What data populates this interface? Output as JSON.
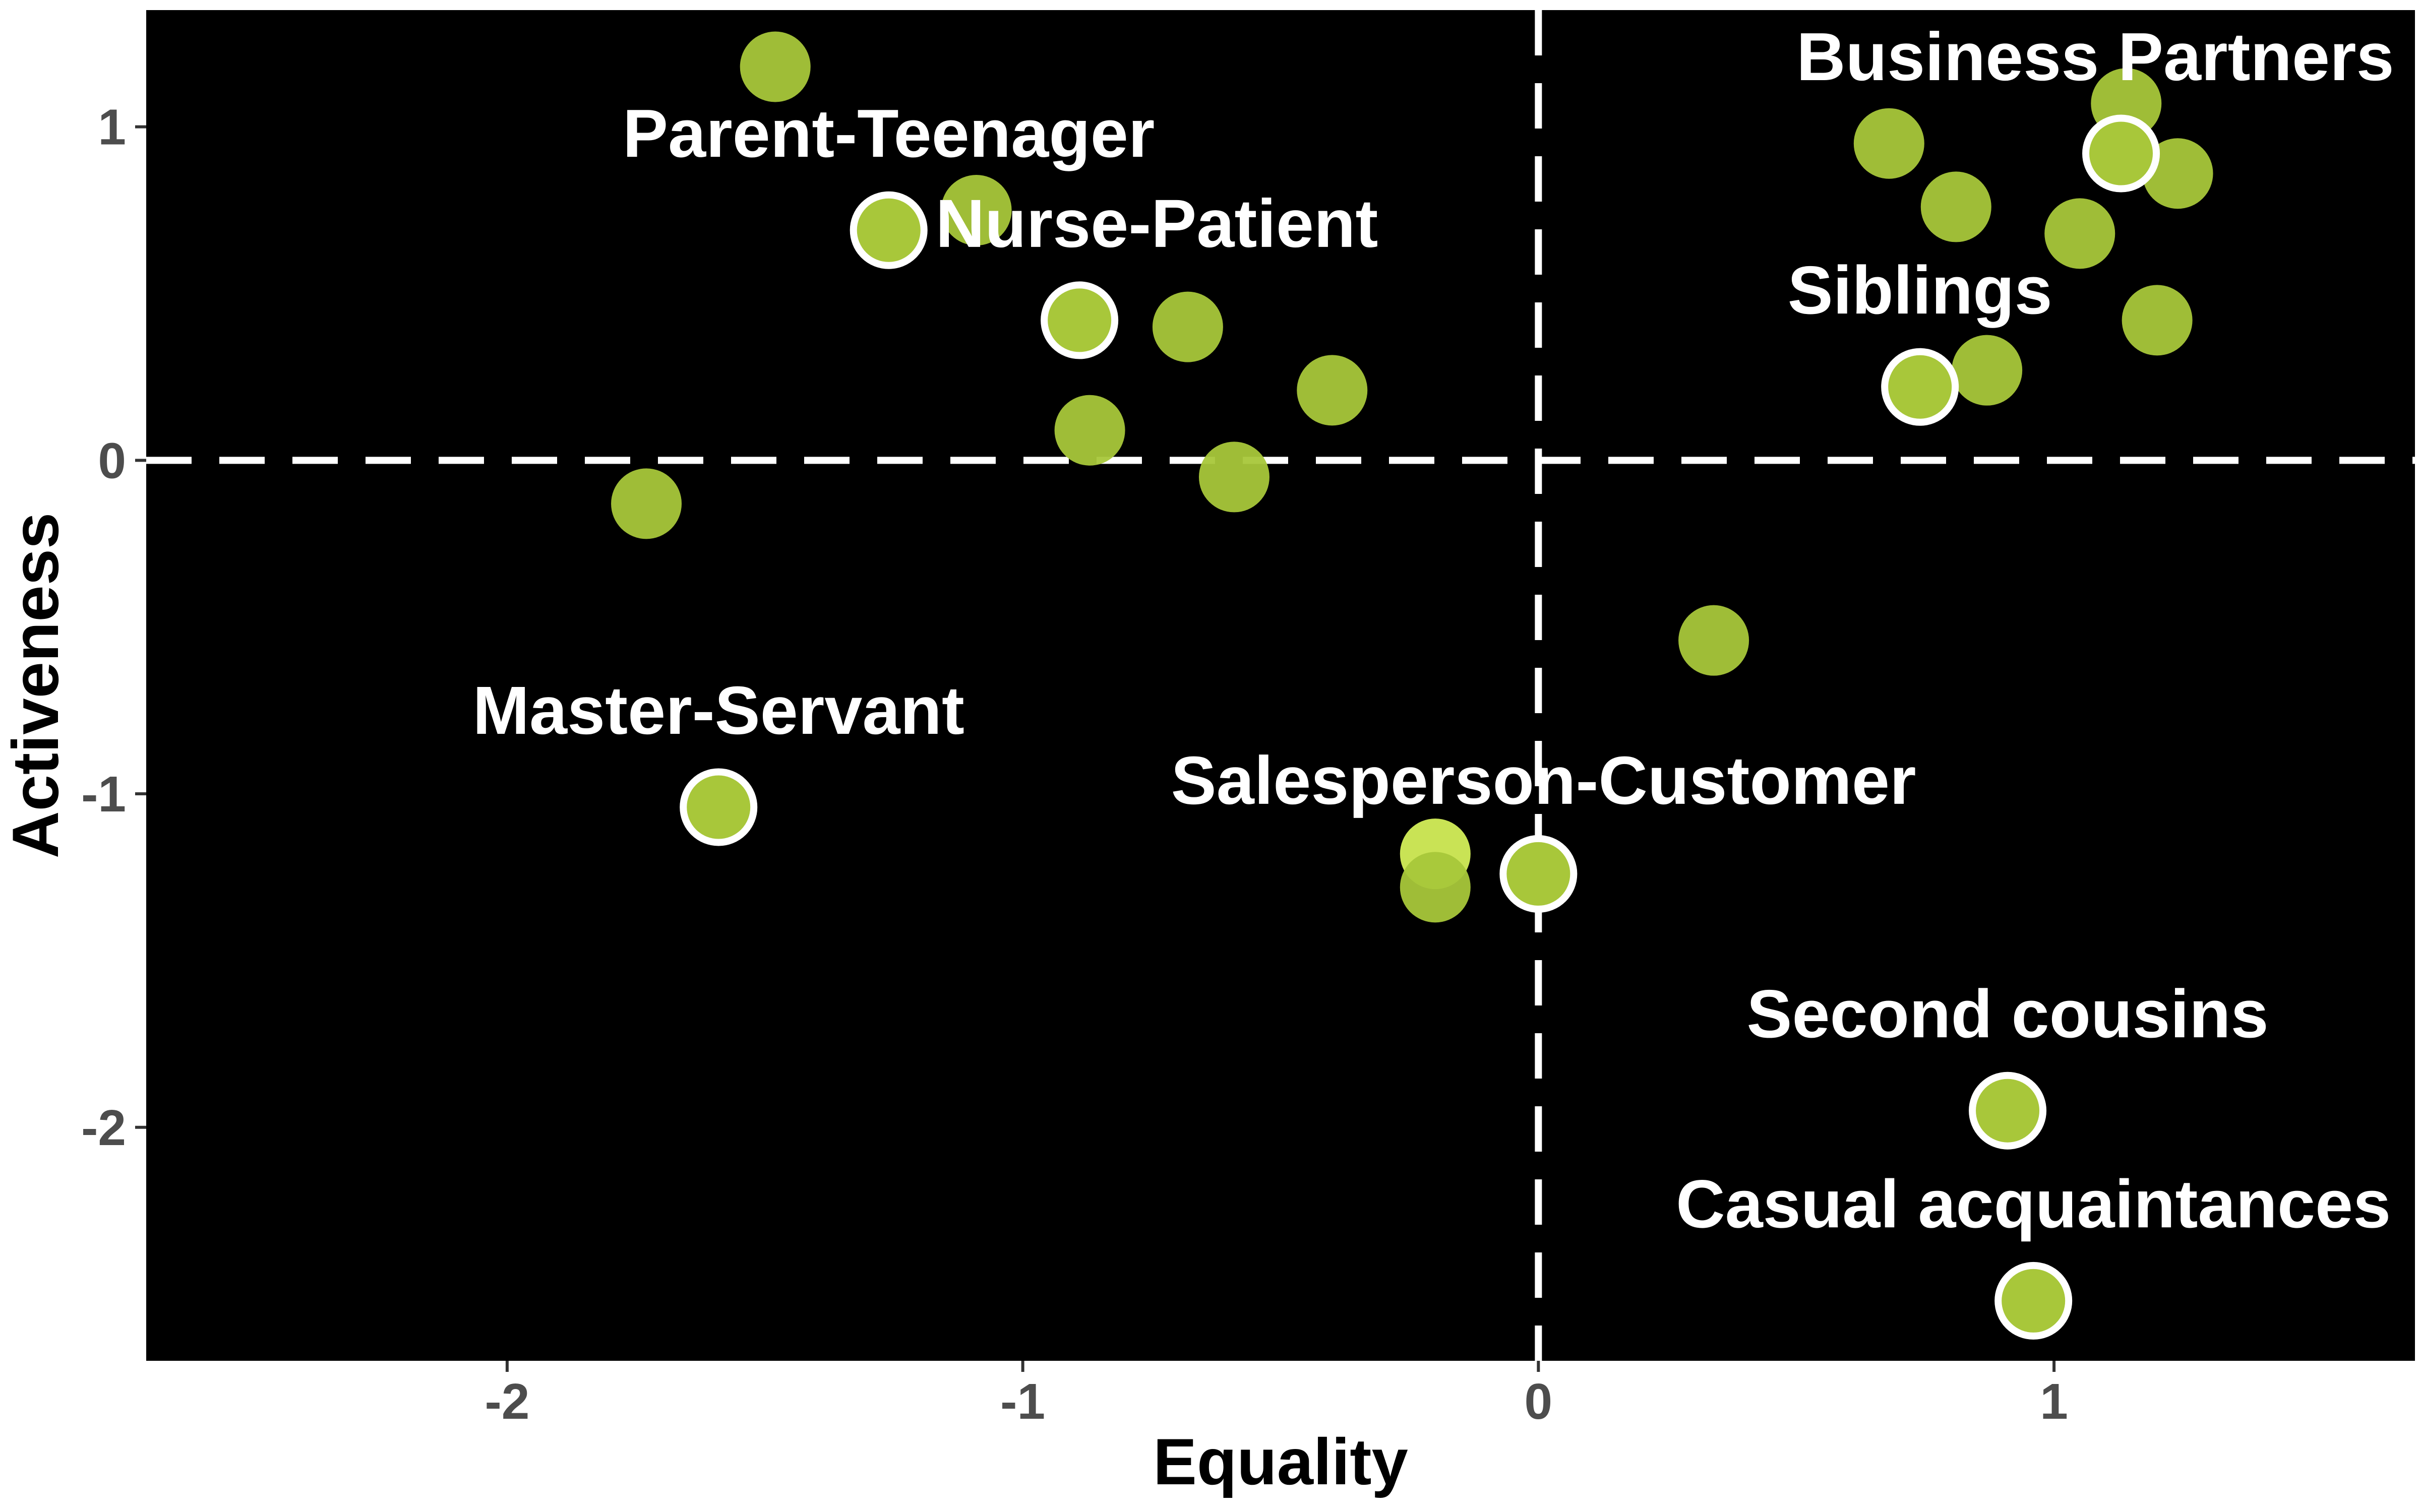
{
  "chart_data": {
    "type": "scatter",
    "title": "",
    "xlabel": "Equality",
    "ylabel": "Activeness",
    "xlim": [
      -2.7,
      1.7
    ],
    "ylim": [
      -2.7,
      1.35
    ],
    "xticks": [
      -2,
      -1,
      0,
      1
    ],
    "yticks": [
      -2,
      -1,
      0,
      1
    ],
    "grid": false,
    "reference_lines": {
      "x": 0,
      "y": 0,
      "style": "dashed",
      "color": "#ffffff"
    },
    "colors": {
      "panel_background": "#000000",
      "point_fill": "#a8c73a",
      "point_fill_light": "#d4ef5a",
      "highlight_outline": "#ffffff",
      "tick_label": "#4d4d4d",
      "axis_title": "#000000"
    },
    "points": [
      {
        "x": -1.48,
        "y": 1.18
      },
      {
        "x": -1.09,
        "y": 0.75
      },
      {
        "x": -0.68,
        "y": 0.4
      },
      {
        "x": -0.4,
        "y": 0.21
      },
      {
        "x": -0.87,
        "y": 0.09
      },
      {
        "x": -0.59,
        "y": -0.05
      },
      {
        "x": -1.73,
        "y": -0.13
      },
      {
        "x": 0.34,
        "y": -0.54
      },
      {
        "x": -0.2,
        "y": -1.18,
        "light": true
      },
      {
        "x": -0.2,
        "y": -1.28
      },
      {
        "x": 0.68,
        "y": 0.95
      },
      {
        "x": 0.81,
        "y": 0.76
      },
      {
        "x": 1.05,
        "y": 0.68
      },
      {
        "x": 1.14,
        "y": 1.07
      },
      {
        "x": 1.24,
        "y": 0.86
      },
      {
        "x": 1.2,
        "y": 0.42
      },
      {
        "x": 0.87,
        "y": 0.27
      }
    ],
    "highlighted": [
      {
        "name": "Parent-Teenager",
        "x": -1.26,
        "y": 0.69,
        "label_x": -1.26,
        "label_y": 0.91
      },
      {
        "name": "Nurse-Patient",
        "x": -0.89,
        "y": 0.42,
        "label_x": -0.74,
        "label_y": 0.64
      },
      {
        "name": "Business Partners",
        "x": 1.13,
        "y": 0.92,
        "label_x": 1.08,
        "label_y": 1.14
      },
      {
        "name": "Siblings",
        "x": 0.74,
        "y": 0.22,
        "label_x": 0.74,
        "label_y": 0.44
      },
      {
        "name": "Master-Servant",
        "x": -1.59,
        "y": -1.04,
        "label_x": -1.59,
        "label_y": -0.82
      },
      {
        "name": "Salesperson-Customer",
        "x": 0.0,
        "y": -1.24,
        "label_x": 0.01,
        "label_y": -1.03
      },
      {
        "name": "Second cousins",
        "x": 0.91,
        "y": -1.95,
        "label_x": 0.91,
        "label_y": -1.73
      },
      {
        "name": "Casual acquaintances",
        "x": 0.96,
        "y": -2.52,
        "label_x": 0.96,
        "label_y": -2.3
      }
    ]
  }
}
